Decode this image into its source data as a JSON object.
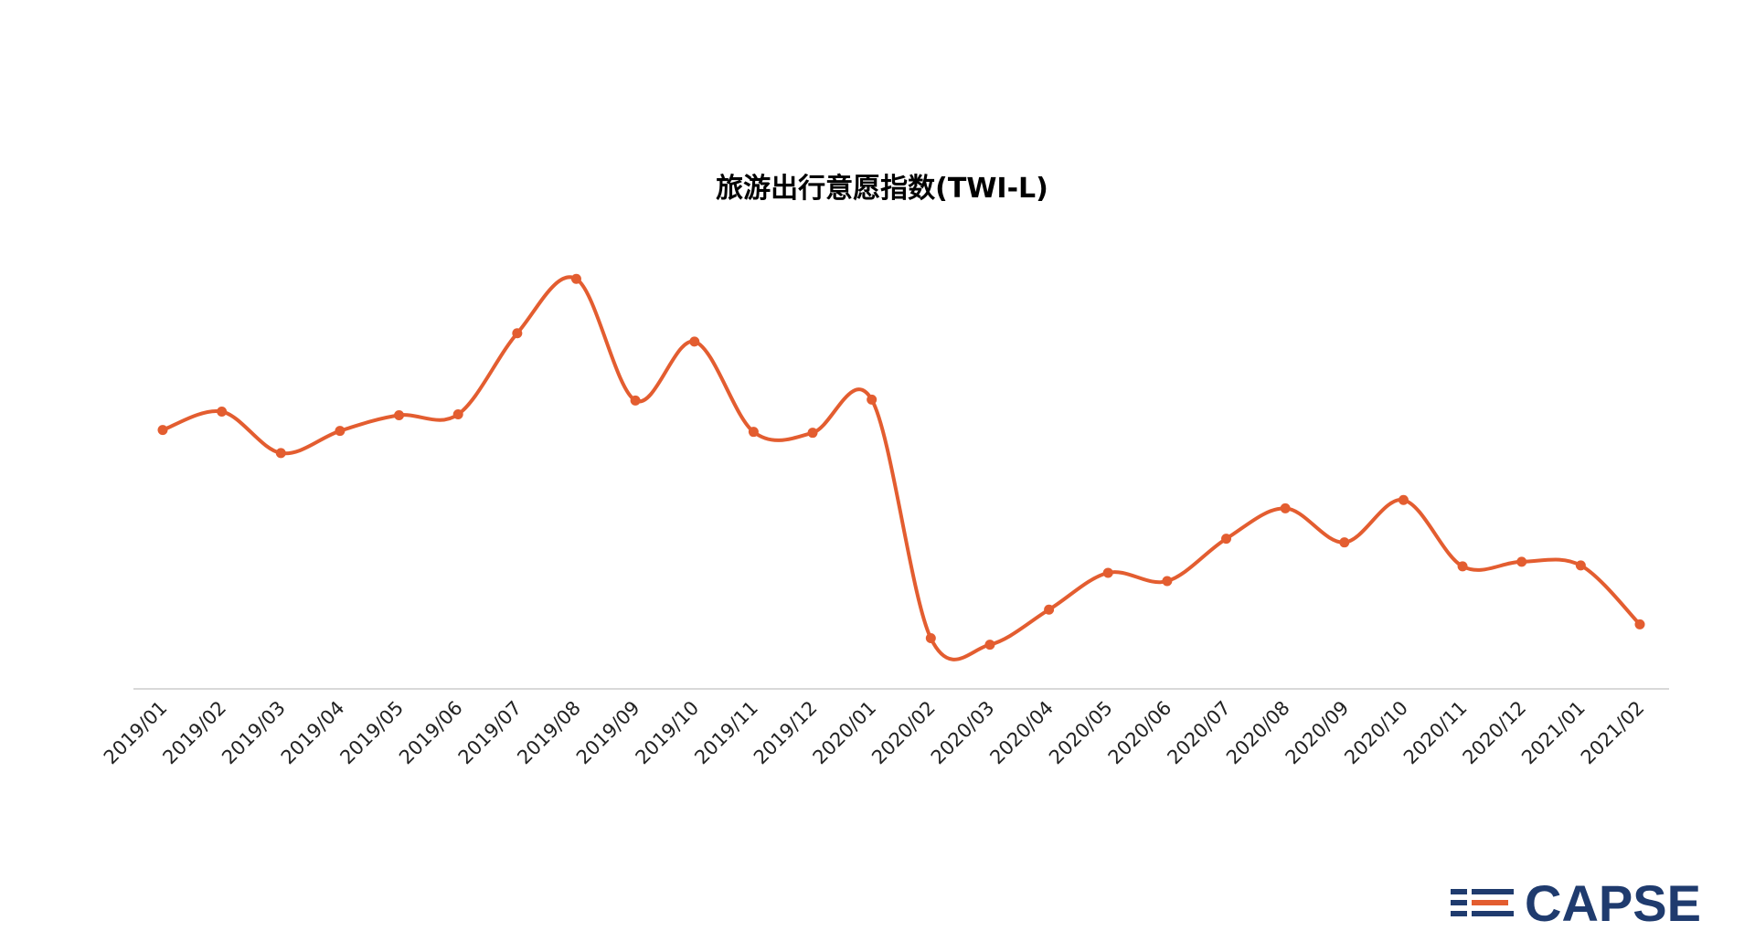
{
  "chart_data": {
    "type": "line",
    "title": "旅游出行意愿指数(TWI-L)",
    "xlabel": "",
    "ylabel": "",
    "categories": [
      "2019/01",
      "2019/02",
      "2019/03",
      "2019/04",
      "2019/05",
      "2019/06",
      "2019/07",
      "2019/08",
      "2019/09",
      "2019/10",
      "2019/11",
      "2019/12",
      "2020/01",
      "2020/02",
      "2020/03",
      "2020/04",
      "2020/05",
      "2020/06",
      "2020/07",
      "2020/08",
      "2020/09",
      "2020/10",
      "2020/11",
      "2020/12",
      "2021/01",
      "2021/02"
    ],
    "series": [
      {
        "values": [
          69.1,
          71.1,
          66.6,
          69.0,
          70.7,
          70.8,
          79.6,
          85.5,
          72.3,
          78.7,
          68.9,
          68.8,
          72.4,
          46.5,
          45.8,
          49.6,
          53.6,
          52.7,
          57.3,
          60.6,
          56.9,
          61.5,
          54.3,
          54.8,
          54.4,
          48.0
        ]
      }
    ],
    "ylim": [
      41,
      89
    ],
    "grid": false,
    "legend": "none",
    "colors": {
      "line": "#e35d30",
      "axis": "#d9d9d9"
    }
  },
  "logo": {
    "text": "CAPSE",
    "colors": {
      "primary": "#1f3b6e",
      "accent": "#e35d30"
    }
  }
}
